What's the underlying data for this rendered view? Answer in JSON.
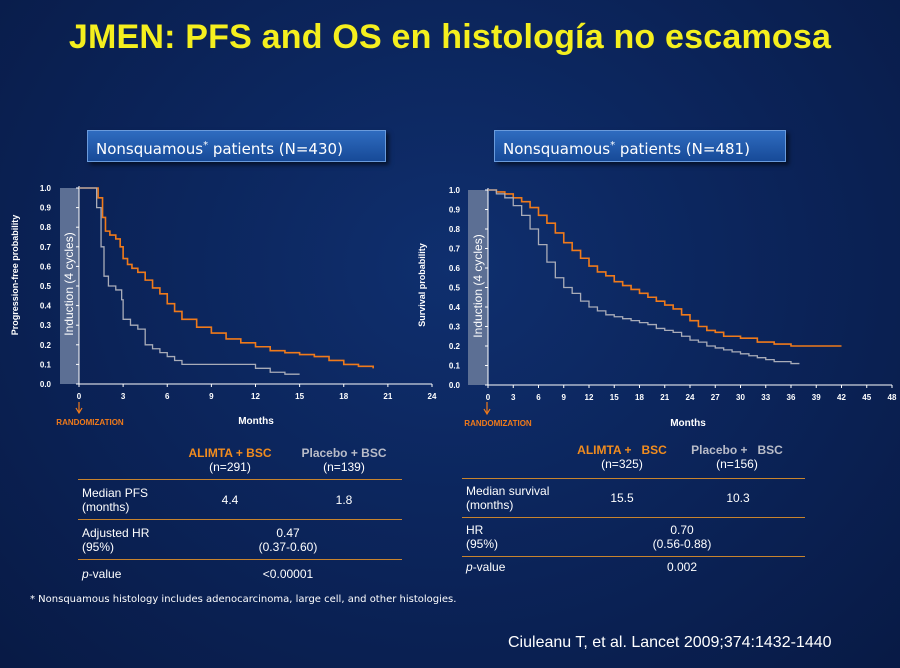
{
  "title": "JMEN: PFS and OS en histología no escamosa",
  "footnote": "* Nonsquamous histology includes adenocarcinoma, large cell, and other histologies.",
  "citation": "Ciuleanu T, et al. Lancet 2009;374:1432-1440",
  "colors": {
    "alimta": "#f07a1a",
    "placebo": "#a9acb8",
    "induction": "#5c6f94",
    "title": "#f5ef1e"
  },
  "chart_data": [
    {
      "type": "line",
      "box_label": "Nonsquamous",
      "box_star": "*",
      "box_rest": " patients (N=430)",
      "xlabel": "Months",
      "ylabel": "Progression-free probability",
      "induction_label": "Induction (4 cycles)",
      "randomization_label": "RANDOMIZATION",
      "xlim": [
        0,
        24
      ],
      "ylim": [
        0,
        1.0
      ],
      "xticks": [
        "0",
        "3",
        "6",
        "9",
        "12",
        "15",
        "18",
        "21",
        "24"
      ],
      "yticks": [
        "0.0",
        "0.1",
        "0.2",
        "0.3",
        "0.4",
        "0.5",
        "0.6",
        "0.7",
        "0.8",
        "0.9",
        "1.0"
      ],
      "series": [
        {
          "key": "alimta",
          "x": [
            0,
            1.0,
            1.3,
            1.6,
            1.8,
            2.1,
            2.5,
            2.8,
            3.0,
            3.3,
            3.6,
            4.0,
            4.5,
            5.0,
            5.5,
            6.0,
            6.5,
            7.0,
            8.0,
            9.0,
            10.0,
            11.0,
            12.0,
            13.0,
            14.0,
            15.0,
            16.0,
            17.0,
            18.0,
            19.0,
            20.0
          ],
          "y": [
            1.0,
            1.0,
            0.95,
            0.85,
            0.78,
            0.76,
            0.74,
            0.7,
            0.64,
            0.61,
            0.59,
            0.57,
            0.53,
            0.49,
            0.46,
            0.41,
            0.37,
            0.33,
            0.29,
            0.26,
            0.23,
            0.21,
            0.19,
            0.17,
            0.16,
            0.15,
            0.14,
            0.12,
            0.1,
            0.09,
            0.08
          ]
        },
        {
          "key": "placebo",
          "x": [
            0,
            0.8,
            1.2,
            1.5,
            1.7,
            2.0,
            2.5,
            2.9,
            3.0,
            3.5,
            4.0,
            4.5,
            5.0,
            5.5,
            6.0,
            6.5,
            7.0,
            8.0,
            10.0,
            12.0,
            13.0,
            14.0,
            15.0
          ],
          "y": [
            1.0,
            1.0,
            0.9,
            0.7,
            0.55,
            0.5,
            0.48,
            0.43,
            0.33,
            0.3,
            0.28,
            0.2,
            0.18,
            0.16,
            0.14,
            0.12,
            0.1,
            0.1,
            0.1,
            0.08,
            0.06,
            0.05,
            0.05
          ]
        }
      ],
      "table": {
        "col1_name": "ALIMTA + BSC",
        "col1_n": "(n=291)",
        "col2_name": "Placebo + BSC",
        "col2_n": "(n=139)",
        "rows": [
          {
            "label1": "Median PFS",
            "label2": "(months)",
            "v1": "4.4",
            "v2": "1.8"
          },
          {
            "label1": "Adjusted HR",
            "label2": "(95%)",
            "center1": "0.47",
            "center2": "(0.37-0.60)"
          },
          {
            "label_p": "p",
            "label_rest": "-value",
            "center1": "<0.00001"
          }
        ]
      }
    },
    {
      "type": "line",
      "box_label": "Nonsquamous",
      "box_star": "*",
      "box_rest": " patients (N=481)",
      "xlabel": "Months",
      "ylabel": "Survival probability",
      "induction_label": "Induction (4 cycles)",
      "randomization_label": "RANDOMIZATION",
      "xlim": [
        0,
        48
      ],
      "ylim": [
        0,
        1.0
      ],
      "xticks": [
        "0",
        "3",
        "6",
        "9",
        "12",
        "15",
        "18",
        "21",
        "24",
        "27",
        "30",
        "33",
        "36",
        "39",
        "42",
        "45",
        "48"
      ],
      "yticks": [
        "0.0",
        "0.1",
        "0.2",
        "0.3",
        "0.4",
        "0.5",
        "0.6",
        "0.7",
        "0.8",
        "0.9",
        "1.0"
      ],
      "series": [
        {
          "key": "alimta",
          "x": [
            0,
            1,
            2,
            3,
            4,
            5,
            6,
            7,
            8,
            9,
            10,
            11,
            12,
            13,
            14,
            15,
            16,
            17,
            18,
            19,
            20,
            21,
            22,
            23,
            24,
            25,
            26,
            27,
            28,
            29,
            30,
            31,
            32,
            33,
            34,
            36,
            38,
            40,
            42
          ],
          "y": [
            1.0,
            0.99,
            0.98,
            0.96,
            0.94,
            0.91,
            0.87,
            0.83,
            0.78,
            0.73,
            0.69,
            0.65,
            0.61,
            0.58,
            0.56,
            0.53,
            0.51,
            0.49,
            0.47,
            0.45,
            0.43,
            0.41,
            0.39,
            0.36,
            0.33,
            0.3,
            0.28,
            0.27,
            0.25,
            0.25,
            0.24,
            0.24,
            0.22,
            0.22,
            0.21,
            0.2,
            0.2,
            0.2,
            0.2
          ]
        },
        {
          "key": "placebo",
          "x": [
            0,
            1,
            2,
            3,
            4,
            5,
            6,
            7,
            8,
            9,
            10,
            11,
            12,
            13,
            14,
            15,
            16,
            17,
            18,
            19,
            20,
            21,
            22,
            23,
            24,
            25,
            26,
            27,
            28,
            29,
            30,
            31,
            32,
            33,
            34,
            35,
            36,
            37
          ],
          "y": [
            1.0,
            0.98,
            0.96,
            0.92,
            0.87,
            0.8,
            0.72,
            0.63,
            0.55,
            0.5,
            0.47,
            0.43,
            0.4,
            0.38,
            0.36,
            0.35,
            0.34,
            0.33,
            0.32,
            0.31,
            0.29,
            0.28,
            0.27,
            0.25,
            0.23,
            0.22,
            0.2,
            0.19,
            0.18,
            0.17,
            0.16,
            0.15,
            0.14,
            0.13,
            0.12,
            0.12,
            0.11,
            0.11
          ]
        }
      ],
      "table": {
        "col1_name": "ALIMTA +   BSC",
        "col1_n": "(n=325)",
        "col2_name": "Placebo +   BSC",
        "col2_n": "(n=156)",
        "rows": [
          {
            "label1": "Median survival",
            "label2": "(months)",
            "v1": "15.5",
            "v2": "10.3"
          },
          {
            "label1": "HR",
            "label2": "(95%)",
            "center1": "0.70",
            "center2": "(0.56-0.88)"
          },
          {
            "label_p": "p",
            "label_rest": "-value",
            "center1": "0.002"
          }
        ]
      }
    }
  ]
}
